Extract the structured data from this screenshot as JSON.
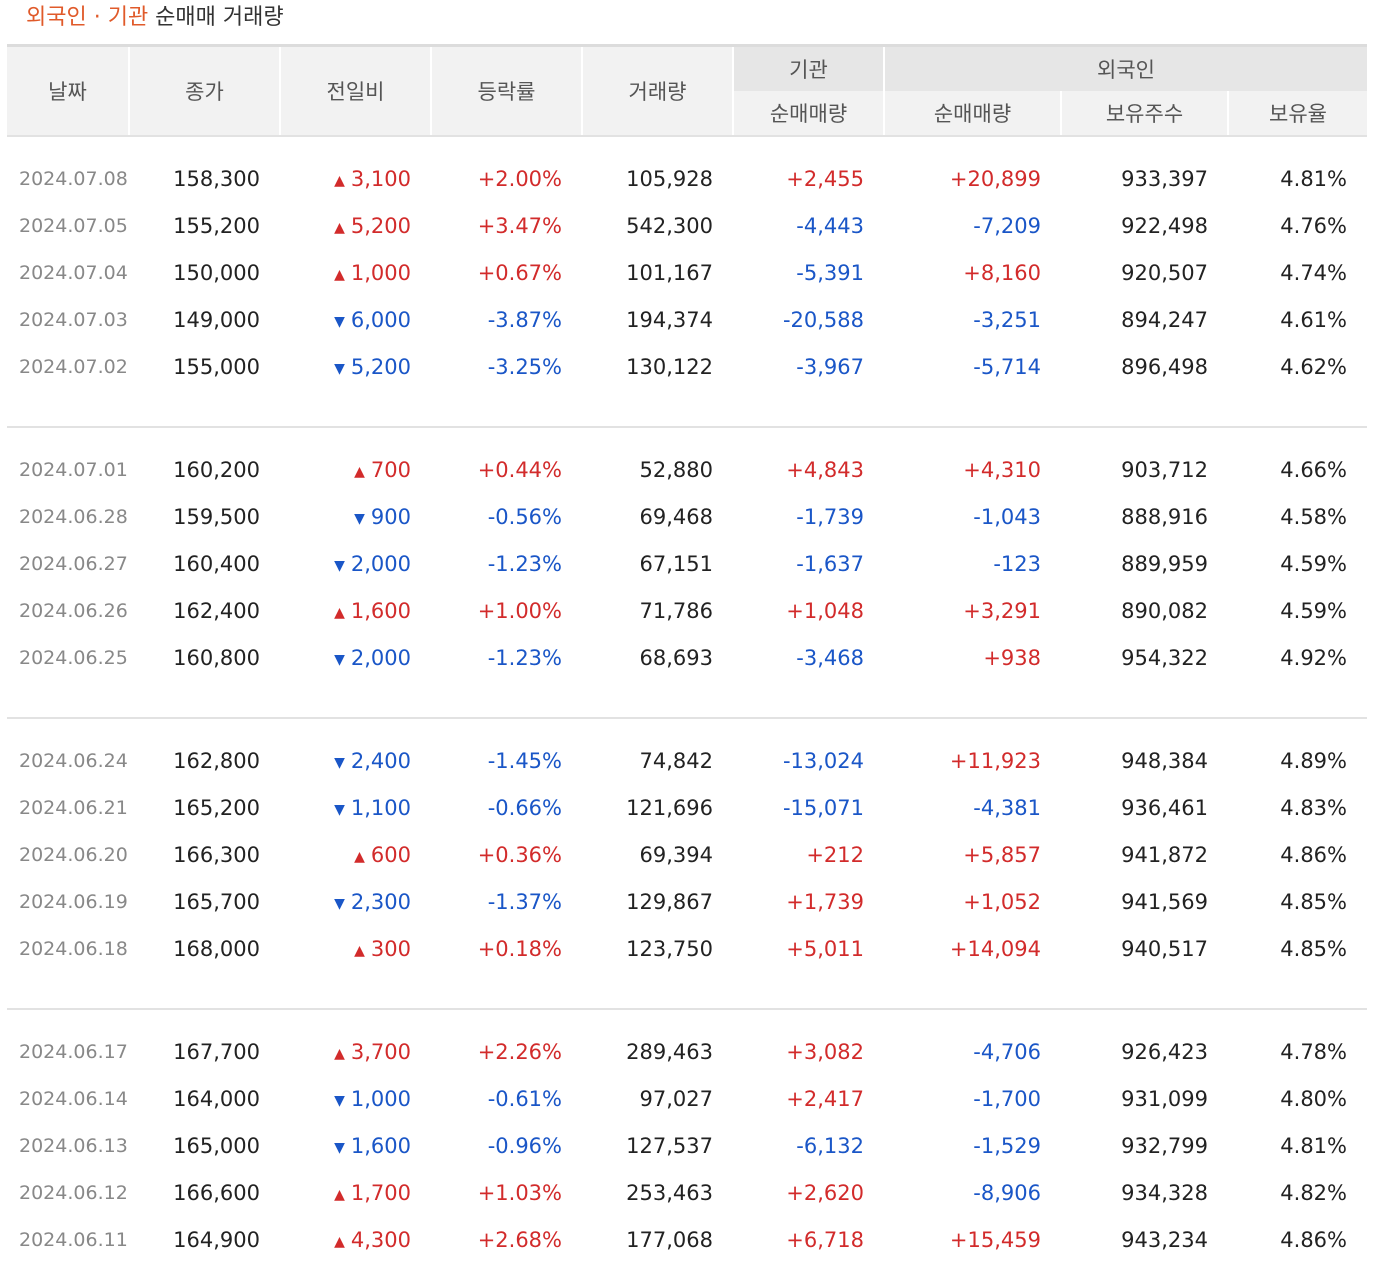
{
  "caption": {
    "highlight": "외국인 · 기관",
    "rest": " 순매매 거래량"
  },
  "headers": {
    "date": "날짜",
    "close": "종가",
    "change": "전일비",
    "rate": "등락률",
    "volume": "거래량",
    "institution": "기관",
    "foreigner": "외국인",
    "inst_net": "순매매량",
    "for_net": "순매매량",
    "holdings": "보유주수",
    "ratio": "보유율"
  },
  "colors": {
    "up": "#d22b2b",
    "down": "#1a56c7",
    "accent": "#e05a2a"
  },
  "groups": [
    [
      {
        "date": "2024.07.08",
        "close": "158,300",
        "dir": "up",
        "change": "3,100",
        "rate": "+2.00%",
        "volume": "105,928",
        "inst": "+2,455",
        "forn": "+20,899",
        "holdings": "933,397",
        "ratio": "4.81%"
      },
      {
        "date": "2024.07.05",
        "close": "155,200",
        "dir": "up",
        "change": "5,200",
        "rate": "+3.47%",
        "volume": "542,300",
        "inst": "-4,443",
        "forn": "-7,209",
        "holdings": "922,498",
        "ratio": "4.76%"
      },
      {
        "date": "2024.07.04",
        "close": "150,000",
        "dir": "up",
        "change": "1,000",
        "rate": "+0.67%",
        "volume": "101,167",
        "inst": "-5,391",
        "forn": "+8,160",
        "holdings": "920,507",
        "ratio": "4.74%"
      },
      {
        "date": "2024.07.03",
        "close": "149,000",
        "dir": "down",
        "change": "6,000",
        "rate": "-3.87%",
        "volume": "194,374",
        "inst": "-20,588",
        "forn": "-3,251",
        "holdings": "894,247",
        "ratio": "4.61%"
      },
      {
        "date": "2024.07.02",
        "close": "155,000",
        "dir": "down",
        "change": "5,200",
        "rate": "-3.25%",
        "volume": "130,122",
        "inst": "-3,967",
        "forn": "-5,714",
        "holdings": "896,498",
        "ratio": "4.62%"
      }
    ],
    [
      {
        "date": "2024.07.01",
        "close": "160,200",
        "dir": "up",
        "change": "700",
        "rate": "+0.44%",
        "volume": "52,880",
        "inst": "+4,843",
        "forn": "+4,310",
        "holdings": "903,712",
        "ratio": "4.66%"
      },
      {
        "date": "2024.06.28",
        "close": "159,500",
        "dir": "down",
        "change": "900",
        "rate": "-0.56%",
        "volume": "69,468",
        "inst": "-1,739",
        "forn": "-1,043",
        "holdings": "888,916",
        "ratio": "4.58%"
      },
      {
        "date": "2024.06.27",
        "close": "160,400",
        "dir": "down",
        "change": "2,000",
        "rate": "-1.23%",
        "volume": "67,151",
        "inst": "-1,637",
        "forn": "-123",
        "holdings": "889,959",
        "ratio": "4.59%"
      },
      {
        "date": "2024.06.26",
        "close": "162,400",
        "dir": "up",
        "change": "1,600",
        "rate": "+1.00%",
        "volume": "71,786",
        "inst": "+1,048",
        "forn": "+3,291",
        "holdings": "890,082",
        "ratio": "4.59%"
      },
      {
        "date": "2024.06.25",
        "close": "160,800",
        "dir": "down",
        "change": "2,000",
        "rate": "-1.23%",
        "volume": "68,693",
        "inst": "-3,468",
        "forn": "+938",
        "holdings": "954,322",
        "ratio": "4.92%"
      }
    ],
    [
      {
        "date": "2024.06.24",
        "close": "162,800",
        "dir": "down",
        "change": "2,400",
        "rate": "-1.45%",
        "volume": "74,842",
        "inst": "-13,024",
        "forn": "+11,923",
        "holdings": "948,384",
        "ratio": "4.89%"
      },
      {
        "date": "2024.06.21",
        "close": "165,200",
        "dir": "down",
        "change": "1,100",
        "rate": "-0.66%",
        "volume": "121,696",
        "inst": "-15,071",
        "forn": "-4,381",
        "holdings": "936,461",
        "ratio": "4.83%"
      },
      {
        "date": "2024.06.20",
        "close": "166,300",
        "dir": "up",
        "change": "600",
        "rate": "+0.36%",
        "volume": "69,394",
        "inst": "+212",
        "forn": "+5,857",
        "holdings": "941,872",
        "ratio": "4.86%"
      },
      {
        "date": "2024.06.19",
        "close": "165,700",
        "dir": "down",
        "change": "2,300",
        "rate": "-1.37%",
        "volume": "129,867",
        "inst": "+1,739",
        "forn": "+1,052",
        "holdings": "941,569",
        "ratio": "4.85%"
      },
      {
        "date": "2024.06.18",
        "close": "168,000",
        "dir": "up",
        "change": "300",
        "rate": "+0.18%",
        "volume": "123,750",
        "inst": "+5,011",
        "forn": "+14,094",
        "holdings": "940,517",
        "ratio": "4.85%"
      }
    ],
    [
      {
        "date": "2024.06.17",
        "close": "167,700",
        "dir": "up",
        "change": "3,700",
        "rate": "+2.26%",
        "volume": "289,463",
        "inst": "+3,082",
        "forn": "-4,706",
        "holdings": "926,423",
        "ratio": "4.78%"
      },
      {
        "date": "2024.06.14",
        "close": "164,000",
        "dir": "down",
        "change": "1,000",
        "rate": "-0.61%",
        "volume": "97,027",
        "inst": "+2,417",
        "forn": "-1,700",
        "holdings": "931,099",
        "ratio": "4.80%"
      },
      {
        "date": "2024.06.13",
        "close": "165,000",
        "dir": "down",
        "change": "1,600",
        "rate": "-0.96%",
        "volume": "127,537",
        "inst": "-6,132",
        "forn": "-1,529",
        "holdings": "932,799",
        "ratio": "4.81%"
      },
      {
        "date": "2024.06.12",
        "close": "166,600",
        "dir": "up",
        "change": "1,700",
        "rate": "+1.03%",
        "volume": "253,463",
        "inst": "+2,620",
        "forn": "-8,906",
        "holdings": "934,328",
        "ratio": "4.82%"
      },
      {
        "date": "2024.06.11",
        "close": "164,900",
        "dir": "up",
        "change": "4,300",
        "rate": "+2.68%",
        "volume": "177,068",
        "inst": "+6,718",
        "forn": "+15,459",
        "holdings": "943,234",
        "ratio": "4.86%"
      }
    ]
  ]
}
